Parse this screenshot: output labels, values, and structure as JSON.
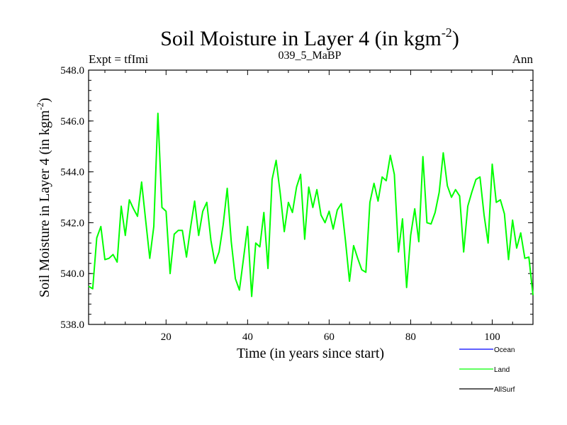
{
  "chart_data": {
    "type": "line",
    "title": "Soil Moisture in Layer 4 (in kgm",
    "title_superscript": "-2",
    "title_close": ")",
    "left_label": "Expt = tfImi",
    "center_label": "039_5_MaBP",
    "right_label": "Ann",
    "xlabel": "Time (in years since start)",
    "ylabel": "Soil Moisture in Layer 4 (in kgm",
    "ylabel_superscript": "-2",
    "ylabel_close": ")",
    "xlim": [
      1,
      110
    ],
    "ylim": [
      538.0,
      548.0
    ],
    "x_ticks": [
      20,
      40,
      60,
      80,
      100
    ],
    "x_tick_labels": [
      "20",
      "40",
      "60",
      "80",
      "100"
    ],
    "y_ticks": [
      538,
      540,
      542,
      544,
      546,
      548
    ],
    "y_tick_labels": [
      "538.0",
      "540.0",
      "542.0",
      "544.0",
      "546.0",
      "548.0"
    ],
    "legend": [
      {
        "name": "Ocean",
        "color": "#0000ff"
      },
      {
        "name": "Land",
        "color": "#00ff00"
      },
      {
        "name": "AllSurf",
        "color": "#000000"
      }
    ],
    "series": [
      {
        "name": "Land",
        "color": "#00ff00",
        "x": [
          1,
          2,
          3,
          4,
          5,
          6,
          7,
          8,
          9,
          10,
          11,
          12,
          13,
          14,
          15,
          16,
          17,
          18,
          19,
          20,
          21,
          22,
          23,
          24,
          25,
          26,
          27,
          28,
          29,
          30,
          31,
          32,
          33,
          34,
          35,
          36,
          37,
          38,
          39,
          40,
          41,
          42,
          43,
          44,
          45,
          46,
          47,
          48,
          49,
          50,
          51,
          52,
          53,
          54,
          55,
          56,
          57,
          58,
          59,
          60,
          61,
          62,
          63,
          64,
          65,
          66,
          67,
          68,
          69,
          70,
          71,
          72,
          73,
          74,
          75,
          76,
          77,
          78,
          79,
          80,
          81,
          82,
          83,
          84,
          85,
          86,
          87,
          88,
          89,
          90,
          91,
          92,
          93,
          94,
          95,
          96,
          97,
          98,
          99,
          100,
          101,
          102,
          103,
          104,
          105,
          106,
          107,
          108,
          109,
          110
        ],
        "values": [
          539.5,
          539.4,
          541.4,
          541.85,
          540.55,
          540.6,
          540.75,
          540.45,
          542.65,
          541.5,
          542.9,
          542.55,
          542.25,
          543.6,
          542.1,
          540.6,
          541.85,
          546.3,
          542.6,
          542.45,
          540.0,
          541.55,
          541.7,
          541.7,
          540.65,
          541.8,
          542.85,
          541.5,
          542.45,
          542.8,
          541.3,
          540.4,
          540.85,
          541.9,
          543.35,
          541.25,
          539.8,
          539.35,
          540.6,
          541.85,
          539.1,
          541.2,
          541.05,
          542.4,
          540.2,
          543.7,
          544.45,
          543.15,
          541.65,
          542.8,
          542.4,
          543.4,
          543.9,
          541.35,
          543.4,
          542.6,
          543.3,
          542.3,
          542.0,
          542.45,
          541.75,
          542.5,
          542.75,
          541.3,
          539.7,
          541.1,
          540.6,
          540.15,
          540.05,
          542.8,
          543.55,
          542.85,
          543.8,
          543.65,
          544.65,
          543.9,
          540.85,
          542.15,
          539.45,
          541.5,
          542.55,
          541.25,
          544.6,
          542.0,
          541.95,
          542.4,
          543.2,
          544.75,
          543.45,
          543.0,
          543.3,
          543.05,
          540.85,
          542.65,
          543.2,
          543.7,
          543.8,
          542.3,
          541.2,
          544.3,
          542.8,
          542.9,
          542.35,
          540.55,
          542.1,
          541.0,
          541.6,
          540.6,
          540.65,
          539.15
        ]
      }
    ]
  }
}
